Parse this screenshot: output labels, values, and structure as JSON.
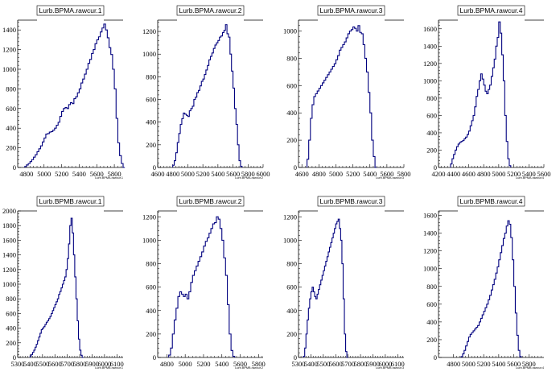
{
  "colors": {
    "histogram": "#00007f",
    "axis": "#000000",
    "background": "#ffffff"
  },
  "chart_data": [
    {
      "type": "histogram",
      "title": "Lurb.BPMA.rawcur.1",
      "xlabel": "Lurb.BPMA.rawcur.1",
      "xlim": [
        4700,
        5900
      ],
      "ylim": [
        0,
        1500
      ],
      "xticks": [
        4800,
        5000,
        5200,
        5400,
        5600,
        5800
      ],
      "yticks": [
        0,
        200,
        400,
        600,
        800,
        1000,
        1200,
        1400
      ],
      "bin_start": 4780,
      "bin_width": 20,
      "values": [
        10,
        25,
        40,
        60,
        80,
        105,
        130,
        160,
        190,
        220,
        260,
        300,
        340,
        345,
        360,
        365,
        380,
        400,
        430,
        460,
        520,
        570,
        600,
        610,
        600,
        640,
        660,
        650,
        700,
        720,
        760,
        800,
        860,
        900,
        950,
        1000,
        1060,
        1100,
        1160,
        1200,
        1260,
        1300,
        1330,
        1380,
        1420,
        1460,
        1400,
        1320,
        1220,
        1150,
        1000,
        800,
        500,
        250,
        120,
        40,
        0
      ]
    },
    {
      "type": "histogram",
      "title": "Lurb.BPMA.rawcur.2",
      "xlabel": "Lurb.BPMA.rawcur.2",
      "xlim": [
        4600,
        6000
      ],
      "ylim": [
        0,
        1300
      ],
      "xticks": [
        4600,
        4800,
        5000,
        5200,
        5400,
        5600,
        5800,
        6000
      ],
      "yticks": [
        0,
        200,
        400,
        600,
        800,
        1000,
        1200
      ],
      "bin_start": 4800,
      "bin_width": 20,
      "values": [
        20,
        60,
        130,
        220,
        300,
        380,
        430,
        480,
        470,
        460,
        450,
        500,
        520,
        540,
        600,
        620,
        660,
        680,
        720,
        760,
        780,
        820,
        860,
        900,
        950,
        980,
        1010,
        1050,
        1080,
        1100,
        1120,
        1150,
        1160,
        1190,
        1210,
        1260,
        1180,
        1150,
        1000,
        850,
        700,
        520,
        380,
        200,
        60,
        10
      ]
    },
    {
      "type": "histogram",
      "title": "Lurb.BPMA.rawcur.3",
      "xlabel": "Lurb.BPMA.rawcur.3",
      "xlim": [
        4560,
        5800
      ],
      "ylim": [
        0,
        1080
      ],
      "xticks": [
        4600,
        4800,
        5000,
        5200,
        5400,
        5600,
        5800
      ],
      "yticks": [
        0,
        200,
        400,
        600,
        800,
        1000
      ],
      "bin_start": 4660,
      "bin_width": 20,
      "values": [
        60,
        200,
        360,
        460,
        520,
        540,
        560,
        580,
        600,
        620,
        640,
        660,
        680,
        700,
        720,
        740,
        760,
        790,
        820,
        860,
        880,
        900,
        920,
        950,
        980,
        1000,
        1010,
        1030,
        1020,
        1000,
        1040,
        990,
        980,
        900,
        800,
        700,
        550,
        400,
        200,
        80,
        0
      ]
    },
    {
      "type": "histogram",
      "title": "Lurb.BPMA.rawcur.4",
      "xlabel": "Lurb.BPMA.rawcur.4",
      "xlim": [
        4200,
        5600
      ],
      "ylim": [
        0,
        1700
      ],
      "xticks": [
        4200,
        4400,
        4600,
        4800,
        5000,
        5200,
        5400,
        5600
      ],
      "yticks": [
        0,
        200,
        400,
        600,
        800,
        1000,
        1200,
        1400,
        1600
      ],
      "bin_start": 4360,
      "bin_width": 20,
      "values": [
        40,
        100,
        150,
        200,
        240,
        270,
        290,
        300,
        310,
        330,
        350,
        380,
        420,
        480,
        540,
        600,
        700,
        820,
        900,
        1000,
        1080,
        1020,
        950,
        880,
        850,
        900,
        950,
        1050,
        1150,
        1250,
        1400,
        1500,
        1680,
        1550,
        1300,
        1000,
        600,
        300,
        100,
        20
      ]
    },
    {
      "type": "histogram",
      "title": "Lurb.BPMB.rawcur.1",
      "xlabel": "Lurb.BPMB.rawcur.1",
      "xlim": [
        5300,
        6150
      ],
      "ylim": [
        0,
        2000
      ],
      "xticks": [
        5300,
        5400,
        5500,
        5600,
        5700,
        5800,
        5900,
        6000,
        6100
      ],
      "yticks": [
        0,
        200,
        400,
        600,
        800,
        1000,
        1200,
        1400,
        1600,
        1800,
        2000
      ],
      "bin_start": 5400,
      "bin_width": 10,
      "values": [
        20,
        40,
        70,
        100,
        140,
        180,
        230,
        280,
        330,
        380,
        400,
        420,
        450,
        480,
        500,
        530,
        560,
        600,
        640,
        680,
        720,
        760,
        800,
        860,
        900,
        950,
        1000,
        1050,
        1100,
        1200,
        1350,
        1550,
        1800,
        1900,
        1700,
        1400,
        1100,
        800,
        500,
        250,
        100,
        30,
        0
      ]
    },
    {
      "type": "histogram",
      "title": "Lurb.BPMB.rawcur.2",
      "xlabel": "Lurb.BPMB.rawcur.2",
      "xlim": [
        4700,
        5850
      ],
      "ylim": [
        0,
        1250
      ],
      "xticks": [
        4800,
        5000,
        5200,
        5400,
        5600,
        5800
      ],
      "yticks": [
        0,
        200,
        400,
        600,
        800,
        1000,
        1200
      ],
      "bin_start": 4820,
      "bin_width": 20,
      "values": [
        20,
        80,
        200,
        320,
        420,
        520,
        560,
        540,
        520,
        540,
        500,
        560,
        640,
        700,
        740,
        780,
        820,
        860,
        900,
        950,
        990,
        1020,
        1060,
        1100,
        1140,
        1150,
        1200,
        1180,
        1100,
        1000,
        850,
        700,
        450,
        200,
        60,
        10
      ]
    },
    {
      "type": "histogram",
      "title": "Lurb.BPMB.rawcur.3",
      "xlabel": "Lurb.BPMB.rawcur.3",
      "xlim": [
        5300,
        6150
      ],
      "ylim": [
        0,
        1250
      ],
      "xticks": [
        5300,
        5400,
        5500,
        5600,
        5700,
        5800,
        5900,
        6000,
        6100
      ],
      "yticks": [
        0,
        200,
        400,
        600,
        800,
        1000,
        1200
      ],
      "bin_start": 5340,
      "bin_width": 10,
      "values": [
        10,
        80,
        200,
        320,
        420,
        500,
        560,
        600,
        560,
        520,
        500,
        540,
        580,
        620,
        660,
        700,
        740,
        780,
        820,
        860,
        900,
        940,
        980,
        1020,
        1060,
        1100,
        1140,
        1160,
        1180,
        1100,
        1000,
        800,
        500,
        200,
        50,
        0
      ]
    },
    {
      "type": "histogram",
      "title": "Lurb.BPMB.rawcur.4",
      "xlabel": "Lurb.BPMB.rawcur.4",
      "xlim": [
        4600,
        6000
      ],
      "ylim": [
        0,
        1650
      ],
      "xticks": [
        4800,
        5000,
        5200,
        5400,
        5600,
        5800
      ],
      "yticks": [
        0,
        200,
        400,
        600,
        800,
        1000,
        1200,
        1400,
        1600
      ],
      "bin_start": 4900,
      "bin_width": 20,
      "values": [
        10,
        40,
        80,
        130,
        180,
        230,
        260,
        280,
        300,
        320,
        340,
        360,
        400,
        440,
        480,
        520,
        560,
        600,
        650,
        700,
        760,
        820,
        880,
        950,
        1020,
        1100,
        1180,
        1260,
        1340,
        1400,
        1480,
        1540,
        1500,
        1350,
        1100,
        800,
        500,
        250,
        80,
        10
      ]
    }
  ]
}
